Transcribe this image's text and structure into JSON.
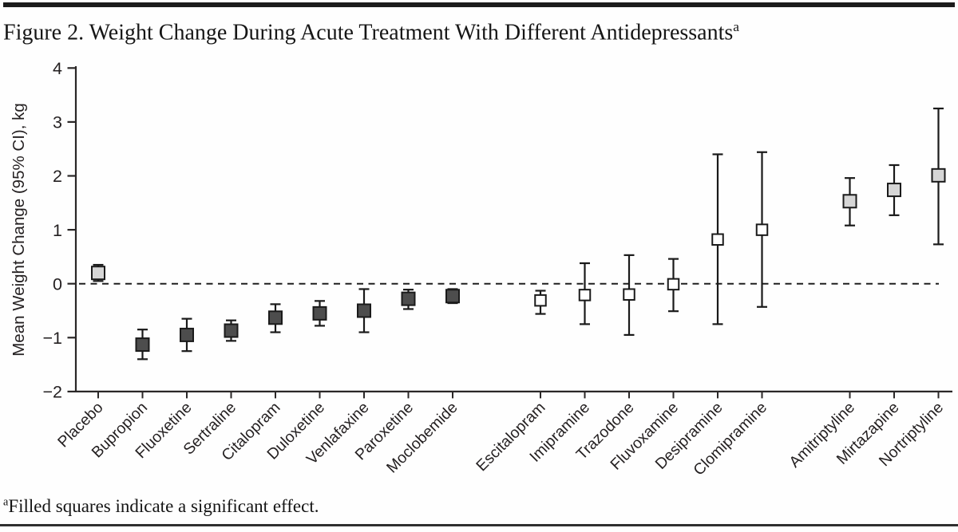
{
  "page": {
    "title": "Figure 2. Weight Change During Acute Treatment With Different Antidepressants",
    "title_superscript": "a",
    "footnote_superscript": "a",
    "footnote": "Filled squares indicate a significant effect."
  },
  "chart_data": {
    "type": "scatter",
    "subtype": "forest-error-bar",
    "title": "Figure 2. Weight Change During Acute Treatment With Different Antidepressants",
    "xlabel": "",
    "ylabel": "Mean Weight Change (95% CI), kg",
    "ylim": [
      -2,
      4
    ],
    "yticks": [
      4,
      3,
      2,
      1,
      0,
      -1,
      -2
    ],
    "zero_reference_line": {
      "value": 0,
      "style": "dashed"
    },
    "footnote": "Filled squares indicate a significant effect.",
    "marker_legend": {
      "dark": "filled dark square = significant effect",
      "light": "filled light-gray square = significant effect",
      "open": "open square = nonsignificant effect"
    },
    "points": [
      {
        "label": "Placebo",
        "group": 1,
        "mean": 0.2,
        "ci_low": 0.05,
        "ci_high": 0.35,
        "style": "light"
      },
      {
        "label": "Bupropion",
        "group": 1,
        "mean": -1.13,
        "ci_low": -1.4,
        "ci_high": -0.85,
        "style": "dark"
      },
      {
        "label": "Fluoxetine",
        "group": 1,
        "mean": -0.95,
        "ci_low": -1.25,
        "ci_high": -0.65,
        "style": "dark"
      },
      {
        "label": "Sertraline",
        "group": 1,
        "mean": -0.87,
        "ci_low": -1.06,
        "ci_high": -0.68,
        "style": "dark"
      },
      {
        "label": "Citalopram",
        "group": 1,
        "mean": -0.63,
        "ci_low": -0.9,
        "ci_high": -0.38,
        "style": "dark"
      },
      {
        "label": "Duloxetine",
        "group": 1,
        "mean": -0.55,
        "ci_low": -0.78,
        "ci_high": -0.32,
        "style": "dark"
      },
      {
        "label": "Venlafaxine",
        "group": 1,
        "mean": -0.5,
        "ci_low": -0.9,
        "ci_high": -0.1,
        "style": "dark"
      },
      {
        "label": "Paroxetine",
        "group": 1,
        "mean": -0.28,
        "ci_low": -0.47,
        "ci_high": -0.11,
        "style": "dark"
      },
      {
        "label": "Moclobemide",
        "group": 1,
        "mean": -0.23,
        "ci_low": -0.36,
        "ci_high": -0.1,
        "style": "dark"
      },
      {
        "label": "Escitalopram",
        "group": 2,
        "mean": -0.31,
        "ci_low": -0.56,
        "ci_high": -0.13,
        "style": "open"
      },
      {
        "label": "Imipramine",
        "group": 2,
        "mean": -0.21,
        "ci_low": -0.75,
        "ci_high": 0.38,
        "style": "open"
      },
      {
        "label": "Trazodone",
        "group": 2,
        "mean": -0.2,
        "ci_low": -0.95,
        "ci_high": 0.53,
        "style": "open"
      },
      {
        "label": "Fluvoxamine",
        "group": 2,
        "mean": -0.01,
        "ci_low": -0.51,
        "ci_high": 0.46,
        "style": "open"
      },
      {
        "label": "Desipramine",
        "group": 2,
        "mean": 0.82,
        "ci_low": -0.75,
        "ci_high": 2.4,
        "style": "open"
      },
      {
        "label": "Clomipramine",
        "group": 2,
        "mean": 1.0,
        "ci_low": -0.43,
        "ci_high": 2.44,
        "style": "open"
      },
      {
        "label": "Amitriptyline",
        "group": 3,
        "mean": 1.53,
        "ci_low": 1.08,
        "ci_high": 1.96,
        "style": "light"
      },
      {
        "label": "Mirtazapine",
        "group": 3,
        "mean": 1.74,
        "ci_low": 1.27,
        "ci_high": 2.2,
        "style": "light"
      },
      {
        "label": "Nortriptyline",
        "group": 3,
        "mean": 2.01,
        "ci_low": 0.73,
        "ci_high": 3.25,
        "style": "light"
      }
    ],
    "colors": {
      "axis": "#2a2727",
      "marker_stroke": "#1a1a1a",
      "dark_fill": "#4d4d4d",
      "light_fill": "#d6d6d6",
      "open_fill": "#ffffff",
      "dashed_line": "#1f1f1f",
      "text": "#231f20"
    }
  }
}
